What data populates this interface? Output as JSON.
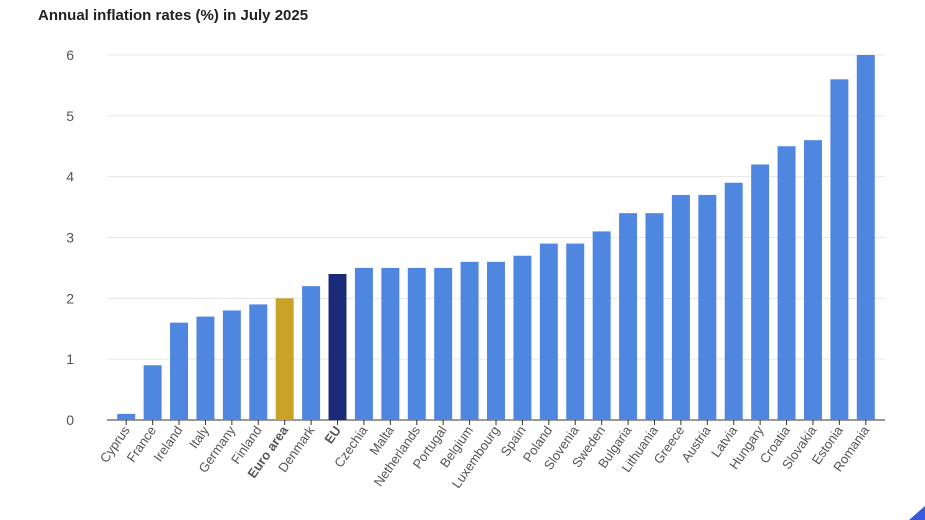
{
  "chart_data": {
    "type": "bar",
    "title": "Annual inflation rates (%) in July 2025",
    "xlabel": "",
    "ylabel": "",
    "ylim": [
      0,
      6
    ],
    "yticks": [
      0,
      1,
      2,
      3,
      4,
      5,
      6
    ],
    "grid": true,
    "legend": "none",
    "categories": [
      "Cyprus",
      "France",
      "Ireland",
      "Italy",
      "Germany",
      "Finland",
      "Euro area",
      "Denmark",
      "EU",
      "Czechia",
      "Malta",
      "Netherlands",
      "Portugal",
      "Belgium",
      "Luxembourg",
      "Spain",
      "Poland",
      "Slovenia",
      "Sweden",
      "Bulgaria",
      "Lithuania",
      "Greece",
      "Austria",
      "Latvia",
      "Hungary",
      "Croatia",
      "Slovakia",
      "Estonia",
      "Romania"
    ],
    "values": [
      0.1,
      0.9,
      1.6,
      1.7,
      1.8,
      1.9,
      2.0,
      2.2,
      2.4,
      2.5,
      2.5,
      2.5,
      2.5,
      2.6,
      2.6,
      2.7,
      2.9,
      2.9,
      3.1,
      3.4,
      3.4,
      3.7,
      3.7,
      3.9,
      4.2,
      4.5,
      4.6,
      5.6,
      6.0
    ],
    "highlight": {
      "Euro area": "#c9a227",
      "EU": "#1c2a7a"
    },
    "bold_categories": [
      "Euro area",
      "EU"
    ],
    "colors": {
      "default": "#4f86e0",
      "grid": "#e6e6e6",
      "axis": "#333333",
      "tick_text": "#555555"
    }
  }
}
